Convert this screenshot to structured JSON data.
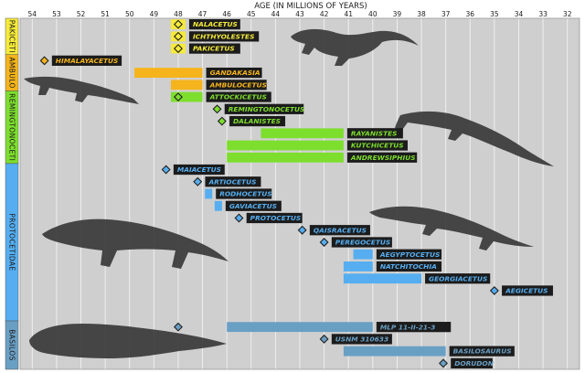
{
  "chart_data": {
    "type": "timeline",
    "title": "",
    "xlabel": "AGE (IN MILLIONS OF YEARS)",
    "ylabel": "",
    "xlim": [
      54.5,
      31.5
    ],
    "x_ticks": [
      54,
      53,
      52,
      51,
      50,
      49,
      48,
      47,
      46,
      45,
      44,
      43,
      42,
      41,
      40,
      39,
      38,
      37,
      36,
      35,
      34,
      33,
      32
    ],
    "grid": true,
    "groups": [
      {
        "name": "PAKICETI",
        "color": "#f5ea3a",
        "start_row": 0,
        "end_row": 2
      },
      {
        "name": "AMBULO",
        "color": "#f5b41c",
        "start_row": 3,
        "end_row": 5
      },
      {
        "name": "REMINGTONOCETI",
        "color": "#7dde2e",
        "start_row": 6,
        "end_row": 11
      },
      {
        "name": "PROTOCETIDAE",
        "color": "#56aef0",
        "start_row": 12,
        "end_row": 24
      },
      {
        "name": "BASILOS",
        "color": "#6a9fc4",
        "start_row": 25,
        "end_row": 28
      }
    ],
    "taxa": [
      {
        "name": "NALACETUS",
        "group": "PAKICETI",
        "row": 0,
        "start": 48.3,
        "end": 47.7,
        "fossil": 48.0
      },
      {
        "name": "ICHTHYOLESTES",
        "group": "PAKICETI",
        "row": 1,
        "start": 48.3,
        "end": 47.7,
        "fossil": 48.0
      },
      {
        "name": "PAKICETUS",
        "group": "PAKICETI",
        "row": 2,
        "start": 48.3,
        "end": 47.7,
        "fossil": 48.0
      },
      {
        "name": "HIMALAYACETUS",
        "group": "AMBULO",
        "row": 3,
        "start": null,
        "end": null,
        "fossil": 53.5
      },
      {
        "name": "GANDAKASIA",
        "group": "AMBULO",
        "row": 4,
        "start": 49.8,
        "end": 47.0,
        "fossil": null
      },
      {
        "name": "AMBULOCETUS",
        "group": "AMBULO",
        "row": 5,
        "start": 48.3,
        "end": 47.0,
        "fossil": null
      },
      {
        "name": "ATTOCKICETUS",
        "group": "REMINGTONOCETI",
        "row": 6,
        "start": 48.3,
        "end": 47.0,
        "fossil": 48.0
      },
      {
        "name": "REMINGTONOCETUS",
        "group": "REMINGTONOCETI",
        "row": 7,
        "start": null,
        "end": null,
        "fossil": 46.4
      },
      {
        "name": "DALANISTES",
        "group": "REMINGTONOCETI",
        "row": 8,
        "start": null,
        "end": null,
        "fossil": 46.2
      },
      {
        "name": "RAYANISTES",
        "group": "REMINGTONOCETI",
        "row": 9,
        "start": 44.6,
        "end": 41.2,
        "fossil": null
      },
      {
        "name": "KUTCHICETUS",
        "group": "REMINGTONOCETI",
        "row": 10,
        "start": 46.0,
        "end": 41.2,
        "fossil": null
      },
      {
        "name": "ANDREWSIPHIUS",
        "group": "REMINGTONOCETI",
        "row": 11,
        "start": 46.0,
        "end": 41.2,
        "fossil": null
      },
      {
        "name": "MAIACETUS",
        "group": "PROTOCETIDAE",
        "row": 12,
        "start": null,
        "end": null,
        "fossil": 48.5
      },
      {
        "name": "ARTIOCETUS",
        "group": "PROTOCETIDAE",
        "row": 13,
        "start": null,
        "end": null,
        "fossil": 47.2
      },
      {
        "name": "RODHOCETUS",
        "group": "PROTOCETIDAE",
        "row": 14,
        "start": 46.9,
        "end": 46.6,
        "fossil": null
      },
      {
        "name": "GAVIACETUS",
        "group": "PROTOCETIDAE",
        "row": 15,
        "start": 46.5,
        "end": 46.2,
        "fossil": null
      },
      {
        "name": "PROTOCETUS",
        "group": "PROTOCETIDAE",
        "row": 16,
        "start": null,
        "end": null,
        "fossil": 45.5
      },
      {
        "name": "QAISRACETUS",
        "group": "PROTOCETIDAE",
        "row": 17,
        "start": null,
        "end": null,
        "fossil": 42.9
      },
      {
        "name": "PEREGOCETUS",
        "group": "PROTOCETIDAE",
        "row": 18,
        "start": null,
        "end": null,
        "fossil": 42.0
      },
      {
        "name": "AEGYPTOCETUS",
        "group": "PROTOCETIDAE",
        "row": 19,
        "start": 40.8,
        "end": 40.0,
        "fossil": null
      },
      {
        "name": "NATCHITOCHIA",
        "group": "PROTOCETIDAE",
        "row": 20,
        "start": 41.2,
        "end": 40.0,
        "fossil": null
      },
      {
        "name": "GEORGIACETUS",
        "group": "PROTOCETIDAE",
        "row": 21,
        "start": 41.2,
        "end": 38.0,
        "fossil": null
      },
      {
        "name": "AEGICETUS",
        "group": "PROTOCETIDAE",
        "row": 22,
        "start": null,
        "end": null,
        "fossil": 35.0
      },
      {
        "name": "MLP 11-II-21-3",
        "group": "BASILOS",
        "row": 25,
        "start": 46.0,
        "end": 40.0,
        "fossil": 48.0
      },
      {
        "name": "USNM 310633",
        "group": "BASILOS",
        "row": 26,
        "start": null,
        "end": null,
        "fossil": 42.0
      },
      {
        "name": "BASILOSAURUS",
        "group": "BASILOS",
        "row": 27,
        "start": 41.2,
        "end": 37.0,
        "fossil": null
      },
      {
        "name": "DORUDON",
        "group": "BASILOS",
        "row": 28,
        "start": null,
        "end": null,
        "fossil": 37.1
      }
    ]
  }
}
